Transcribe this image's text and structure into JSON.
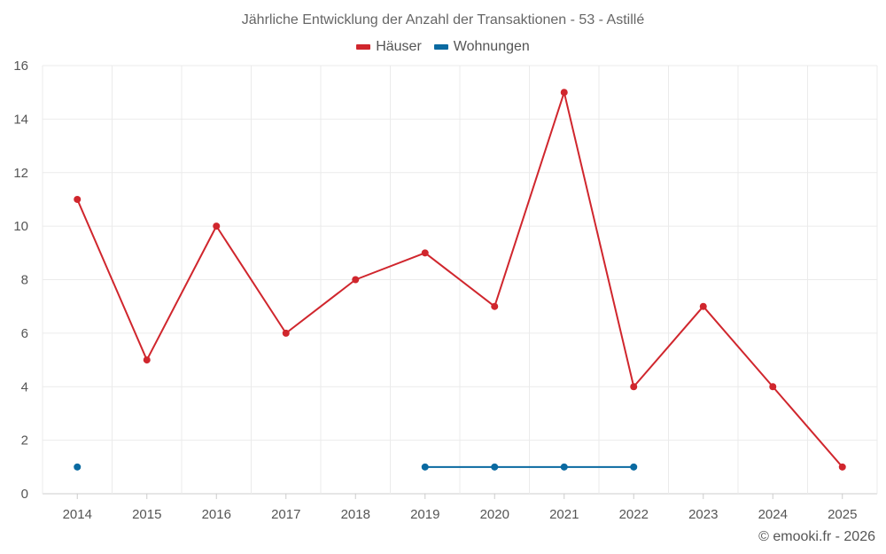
{
  "chart_data": {
    "type": "line",
    "title": "Jährliche Entwicklung der Anzahl der Transaktionen - 53 - Astillé",
    "categories": [
      "2014",
      "2015",
      "2016",
      "2017",
      "2018",
      "2019",
      "2020",
      "2021",
      "2022",
      "2023",
      "2024",
      "2025"
    ],
    "ylim": [
      0,
      16
    ],
    "yticks": [
      0,
      2,
      4,
      6,
      8,
      10,
      12,
      14,
      16
    ],
    "series": [
      {
        "name": "Häuser",
        "color": "#d0262d",
        "values": [
          11,
          5,
          10,
          6,
          8,
          9,
          7,
          15,
          4,
          7,
          4,
          1
        ]
      },
      {
        "name": "Wohnungen",
        "color": "#0a6aa1",
        "values": [
          1,
          null,
          null,
          null,
          null,
          1,
          1,
          1,
          1,
          null,
          null,
          null
        ]
      }
    ],
    "xlabel": "",
    "ylabel": "",
    "grid": true,
    "legend_position": "top-center"
  },
  "credit": "© emooki.fr - 2026"
}
